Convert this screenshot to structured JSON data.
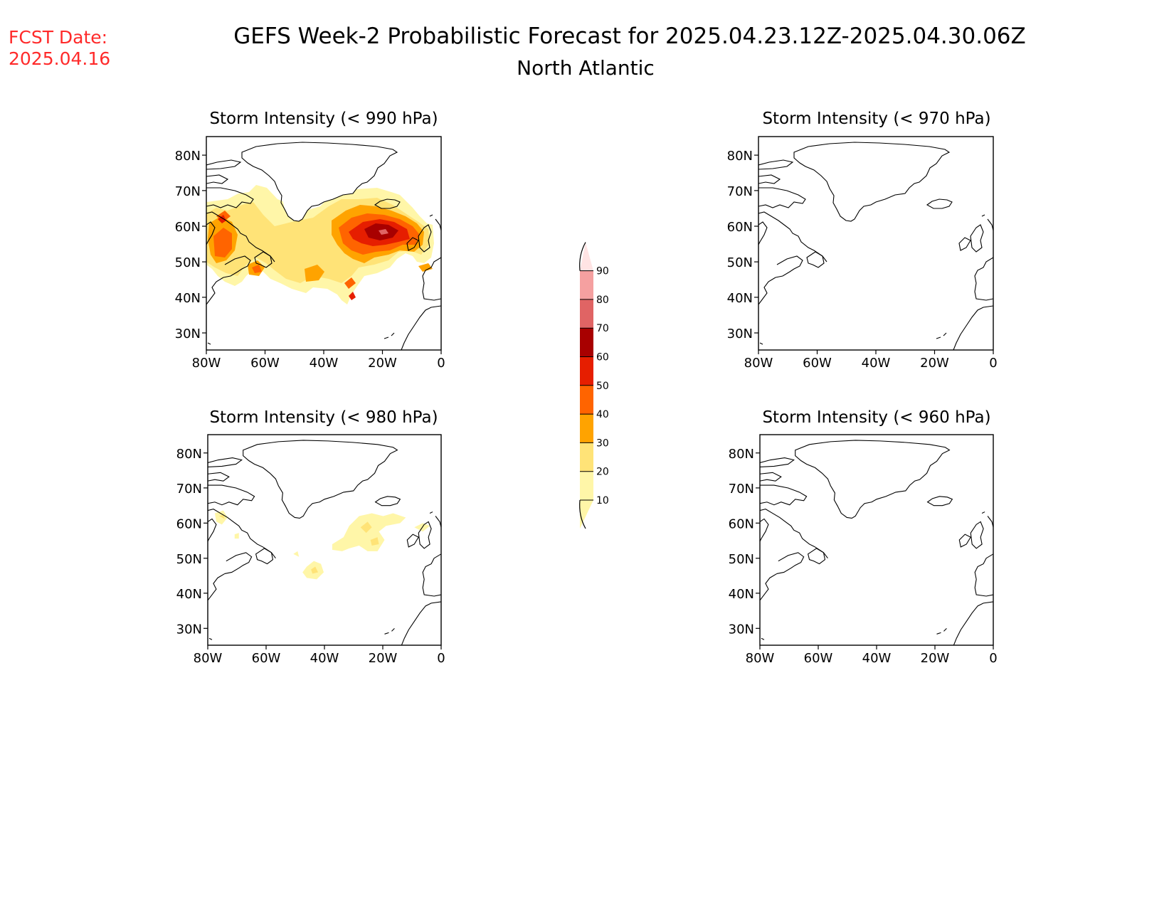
{
  "fcst_label": "FCST Date:",
  "fcst_date": "2025.04.16",
  "title": "GEFS Week-2 Probabilistic Forecast for 2025.04.23.12Z-2025.04.30.06Z",
  "subtitle": "North Atlantic",
  "colors": {
    "forecast_date": "#ff2a2a",
    "text": "#000000",
    "land_outline": "#000000"
  },
  "panels": [
    {
      "id": "p990",
      "title": "Storm Intensity (< 990 hPa)"
    },
    {
      "id": "p970",
      "title": "Storm Intensity (< 970 hPa)"
    },
    {
      "id": "p980",
      "title": "Storm Intensity (< 980 hPa)"
    },
    {
      "id": "p960",
      "title": "Storm Intensity (< 960 hPa)"
    }
  ],
  "lat_ticks": [
    "80N",
    "70N",
    "60N",
    "50N",
    "40N",
    "30N"
  ],
  "lon_ticks": [
    "80W",
    "60W",
    "40W",
    "20W",
    "0"
  ],
  "colorbar": {
    "labels": [
      "10",
      "20",
      "30",
      "40",
      "50",
      "60",
      "70",
      "80",
      "90"
    ],
    "colors": [
      "#fff6a8",
      "#ffe377",
      "#ffa300",
      "#ff6400",
      "#e61e00",
      "#a80000",
      "#e06464",
      "#f5a0a0",
      "#ffe4e4"
    ]
  }
}
